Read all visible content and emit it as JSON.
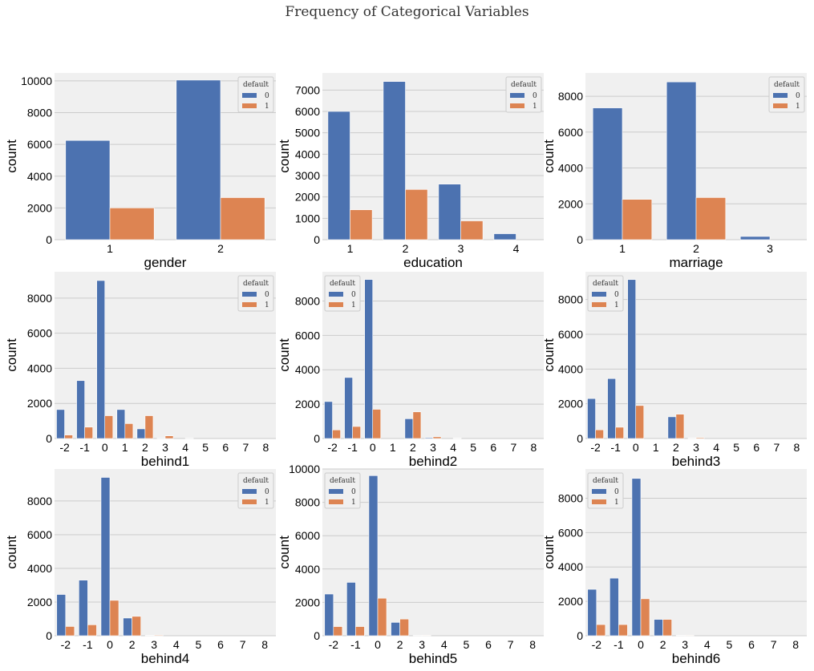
{
  "title": "Frequency of Categorical Variables",
  "colors": {
    "series0": "#4c72b0",
    "series1": "#dd8452",
    "background": "#f0f0f0",
    "grid": "#cbcbcb"
  },
  "chart_data": [
    {
      "type": "bar",
      "xlabel": "gender",
      "ylabel": "count",
      "categories": [
        "1",
        "2"
      ],
      "ylim": [
        0,
        10500
      ],
      "yticks": [
        0,
        2000,
        4000,
        6000,
        8000,
        10000
      ],
      "legend": {
        "title": "default",
        "position": "top-right"
      },
      "series": [
        {
          "name": "0",
          "values": [
            6250,
            10050
          ]
        },
        {
          "name": "1",
          "values": [
            2000,
            2650
          ]
        }
      ]
    },
    {
      "type": "bar",
      "xlabel": "education",
      "ylabel": "count",
      "categories": [
        "1",
        "2",
        "3",
        "4"
      ],
      "ylim": [
        0,
        7800
      ],
      "yticks": [
        0,
        1000,
        2000,
        3000,
        4000,
        5000,
        6000,
        7000
      ],
      "legend": {
        "title": "default",
        "position": "top-right"
      },
      "series": [
        {
          "name": "0",
          "values": [
            6000,
            7400,
            2600,
            280
          ]
        },
        {
          "name": "1",
          "values": [
            1400,
            2350,
            880,
            0
          ]
        }
      ]
    },
    {
      "type": "bar",
      "xlabel": "marriage",
      "ylabel": "count",
      "categories": [
        "1",
        "2",
        "3"
      ],
      "ylim": [
        0,
        9300
      ],
      "yticks": [
        0,
        2000,
        4000,
        6000,
        8000
      ],
      "legend": {
        "title": "default",
        "position": "top-right"
      },
      "series": [
        {
          "name": "0",
          "values": [
            7350,
            8800,
            180
          ]
        },
        {
          "name": "1",
          "values": [
            2250,
            2350,
            0
          ]
        }
      ]
    },
    {
      "type": "bar",
      "xlabel": "behind1",
      "ylabel": "count",
      "categories": [
        "-2",
        "-1",
        "0",
        "1",
        "2",
        "3",
        "4",
        "5",
        "6",
        "7",
        "8"
      ],
      "ylim": [
        0,
        9500
      ],
      "yticks": [
        0,
        2000,
        4000,
        6000,
        8000
      ],
      "legend": {
        "title": "default",
        "position": "top-right"
      },
      "series": [
        {
          "name": "0",
          "values": [
            1650,
            3300,
            9000,
            1650,
            550,
            30,
            0,
            0,
            0,
            0,
            0
          ]
        },
        {
          "name": "1",
          "values": [
            200,
            650,
            1300,
            850,
            1300,
            150,
            10,
            0,
            0,
            0,
            0
          ]
        }
      ]
    },
    {
      "type": "bar",
      "xlabel": "behind2",
      "ylabel": "count",
      "categories": [
        "-2",
        "-1",
        "0",
        "1",
        "2",
        "3",
        "4",
        "5",
        "6",
        "7",
        "8"
      ],
      "ylim": [
        0,
        9700
      ],
      "yticks": [
        0,
        2000,
        4000,
        6000,
        8000
      ],
      "legend": {
        "title": "default",
        "position": "top-left"
      },
      "series": [
        {
          "name": "0",
          "values": [
            2150,
            3550,
            9250,
            0,
            1150,
            50,
            0,
            0,
            0,
            0,
            0
          ]
        },
        {
          "name": "1",
          "values": [
            500,
            700,
            1700,
            0,
            1550,
            100,
            20,
            0,
            0,
            0,
            0
          ]
        }
      ]
    },
    {
      "type": "bar",
      "xlabel": "behind3",
      "ylabel": "count",
      "categories": [
        "-2",
        "-1",
        "0",
        "1",
        "2",
        "3",
        "4",
        "5",
        "6",
        "7",
        "8"
      ],
      "ylim": [
        0,
        9600
      ],
      "yticks": [
        0,
        2000,
        4000,
        6000,
        8000
      ],
      "legend": {
        "title": "default",
        "position": "top-left"
      },
      "series": [
        {
          "name": "0",
          "values": [
            2300,
            3450,
            9150,
            0,
            1250,
            20,
            0,
            0,
            0,
            0,
            0
          ]
        },
        {
          "name": "1",
          "values": [
            500,
            650,
            1900,
            0,
            1400,
            50,
            0,
            0,
            0,
            0,
            0
          ]
        }
      ]
    },
    {
      "type": "bar",
      "xlabel": "behind4",
      "ylabel": "count",
      "categories": [
        "-2",
        "-1",
        "0",
        "2",
        "3",
        "4",
        "5",
        "6",
        "7",
        "8"
      ],
      "ylim": [
        0,
        9900
      ],
      "yticks": [
        0,
        2000,
        4000,
        6000,
        8000
      ],
      "legend": {
        "title": "default",
        "position": "top-right"
      },
      "series": [
        {
          "name": "0",
          "values": [
            2450,
            3300,
            9400,
            1050,
            20,
            0,
            0,
            0,
            0,
            0
          ]
        },
        {
          "name": "1",
          "values": [
            550,
            650,
            2100,
            1150,
            40,
            0,
            0,
            0,
            0,
            0
          ]
        }
      ]
    },
    {
      "type": "bar",
      "xlabel": "behind5",
      "ylabel": "count",
      "categories": [
        "-2",
        "-1",
        "0",
        "2",
        "3",
        "4",
        "5",
        "6",
        "7",
        "8"
      ],
      "ylim": [
        0,
        10000
      ],
      "yticks": [
        0,
        2000,
        4000,
        6000,
        8000,
        10000
      ],
      "legend": {
        "title": "default",
        "position": "top-left"
      },
      "series": [
        {
          "name": "0",
          "values": [
            2500,
            3200,
            9600,
            800,
            20,
            0,
            0,
            0,
            0,
            0
          ]
        },
        {
          "name": "1",
          "values": [
            550,
            550,
            2250,
            1000,
            30,
            0,
            0,
            0,
            0,
            0
          ]
        }
      ]
    },
    {
      "type": "bar",
      "xlabel": "behind6",
      "ylabel": "count",
      "categories": [
        "-2",
        "-1",
        "0",
        "2",
        "3",
        "4",
        "5",
        "6",
        "7",
        "8"
      ],
      "ylim": [
        0,
        9700
      ],
      "yticks": [
        0,
        2000,
        4000,
        6000,
        8000
      ],
      "legend": {
        "title": "default",
        "position": "top-left"
      },
      "series": [
        {
          "name": "0",
          "values": [
            2700,
            3350,
            9150,
            950,
            20,
            0,
            0,
            0,
            0,
            0
          ]
        },
        {
          "name": "1",
          "values": [
            650,
            650,
            2150,
            950,
            30,
            0,
            0,
            0,
            0,
            0
          ]
        }
      ]
    }
  ]
}
